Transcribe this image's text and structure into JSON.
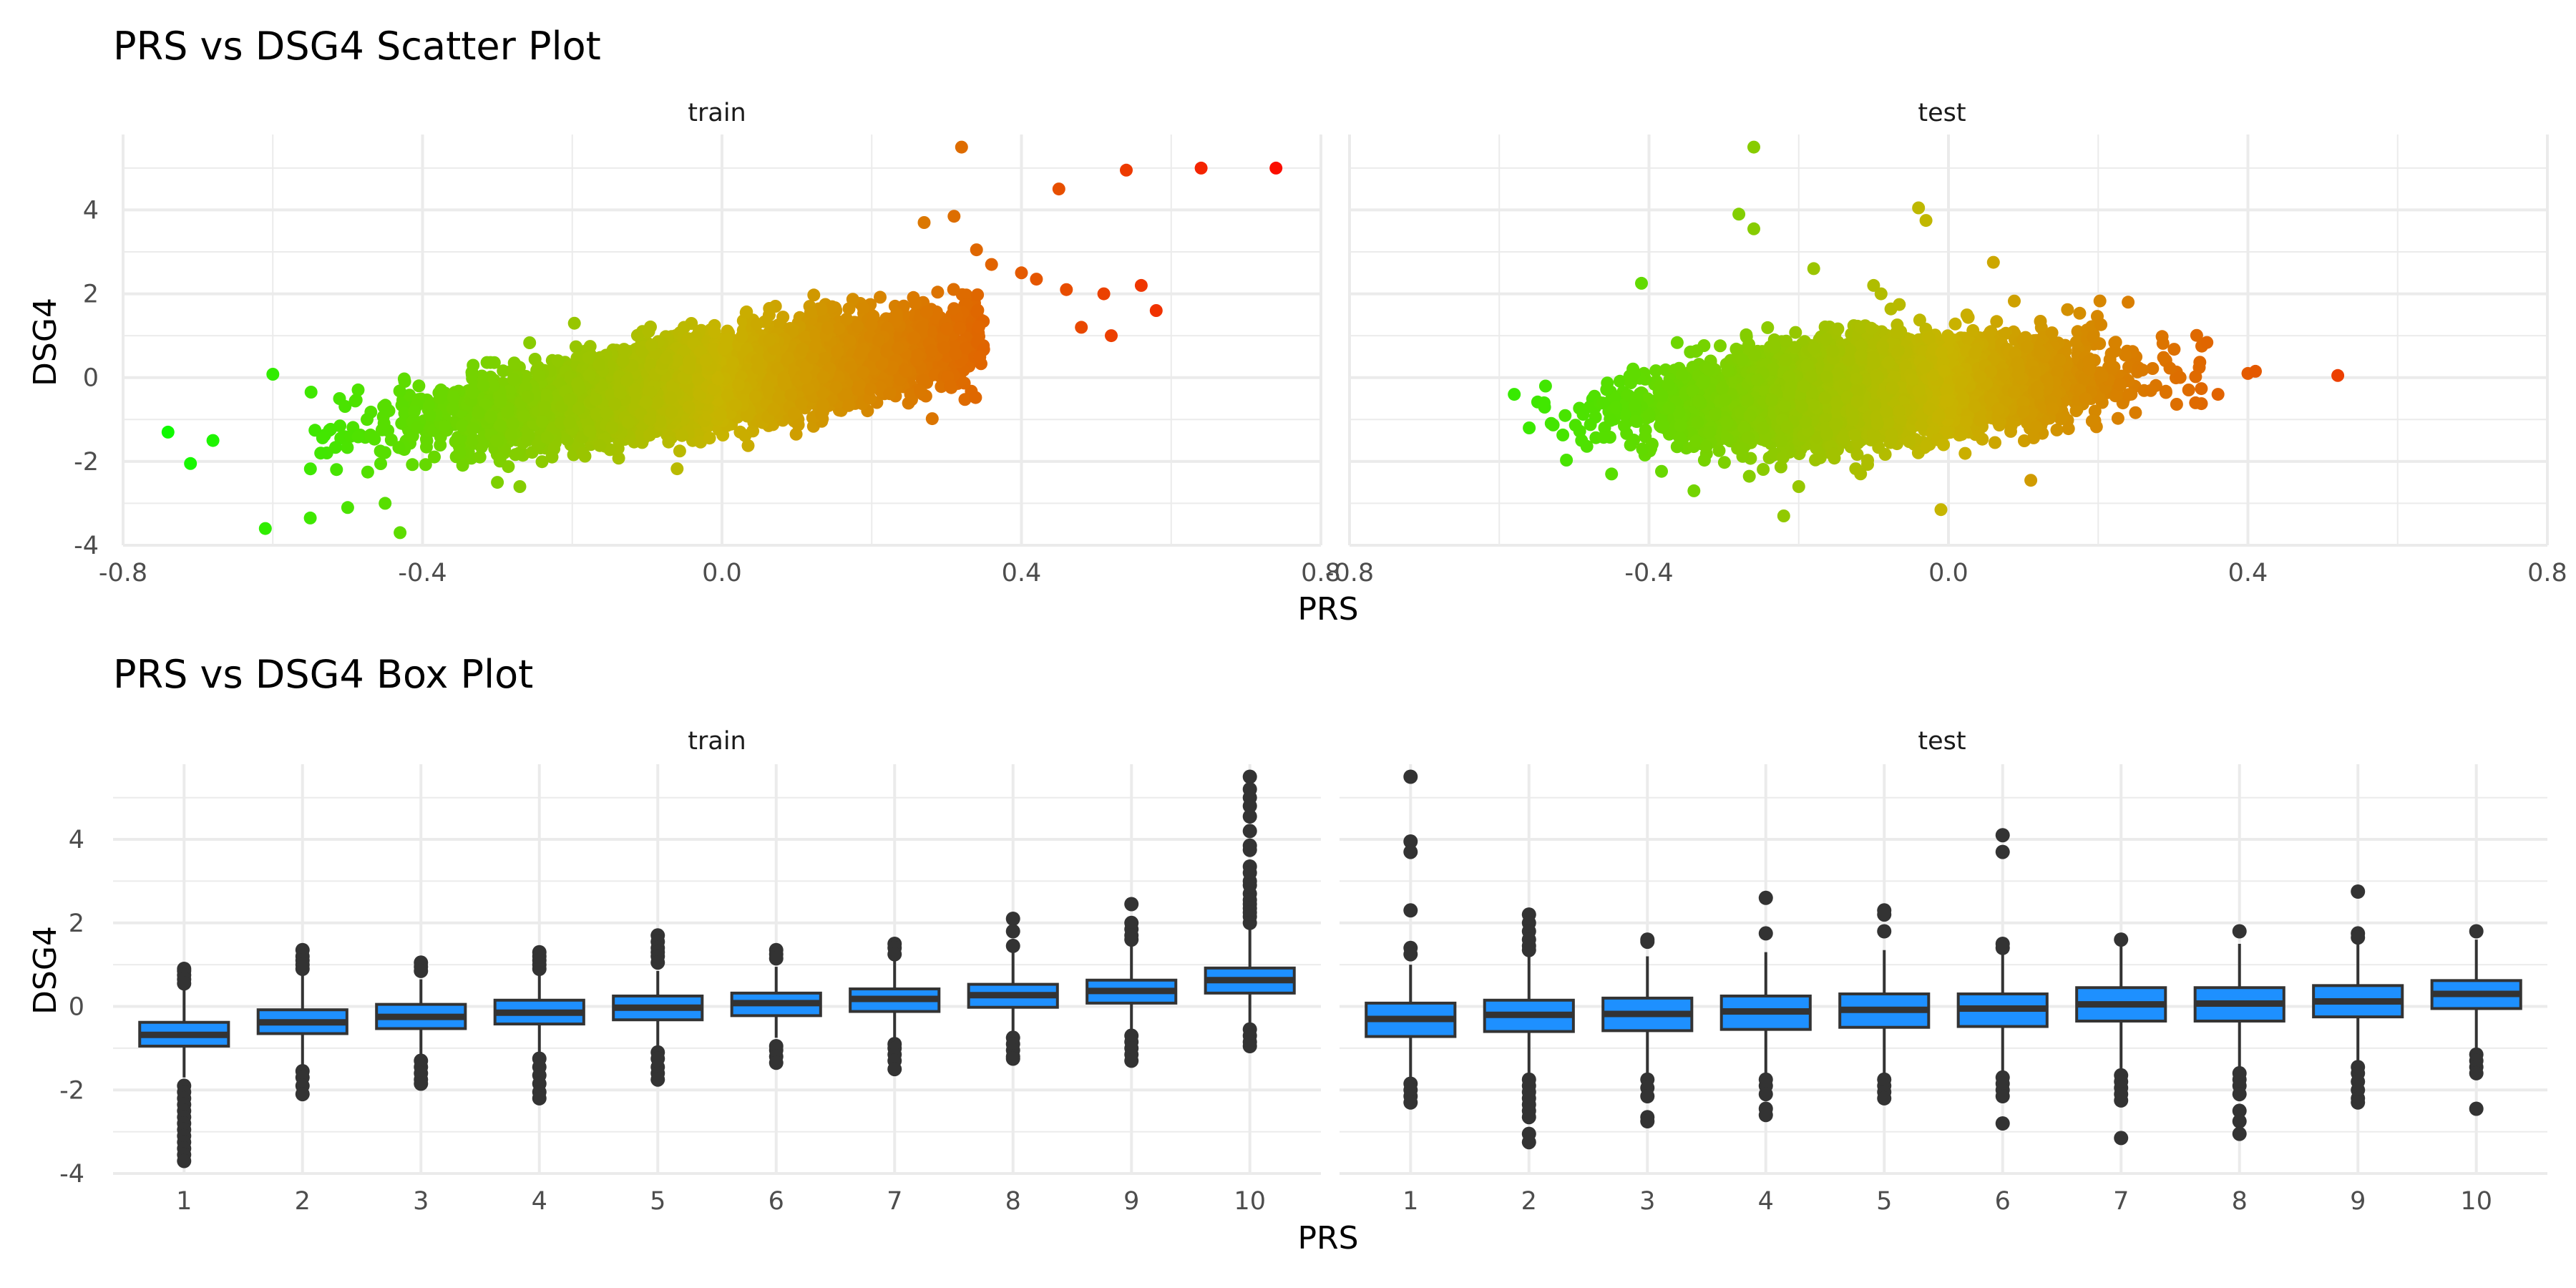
{
  "colors": {
    "low": "#00ff00",
    "mid": "#c8b400",
    "high": "#ff0000",
    "box_fill": "#1e90ff",
    "box_stroke": "#333333",
    "grid": "#ebebeb",
    "text": "#4d4d4d"
  },
  "chart_data": [
    {
      "type": "scatter",
      "title": "PRS vs DSG4 Scatter Plot",
      "xlabel": "PRS",
      "ylabel": "DSG4",
      "xlim": [
        -0.8,
        0.8
      ],
      "ylim": [
        -4,
        5.8
      ],
      "x_ticks": [
        -0.8,
        -0.4,
        0.0,
        0.4,
        0.8
      ],
      "x_tick_labels": [
        "-0.8",
        "-0.4",
        "0.0",
        "0.4",
        "0.8"
      ],
      "y_ticks": [
        -4,
        -2,
        0,
        2,
        4
      ],
      "y_tick_labels": [
        "-4",
        "-2",
        "0",
        "2",
        "4"
      ],
      "grid": true,
      "legend": "none",
      "color_by": "PRS",
      "color_scale": [
        "#00ff00",
        "#c8b400",
        "#ff0000"
      ],
      "facets": [
        {
          "label": "train",
          "cloud": {
            "n": 6000,
            "x_mean": 0.0,
            "x_sd": 0.17,
            "intercept": 0.0,
            "slope": 2.6,
            "noise_sd": 0.5
          },
          "points": [
            [
              -0.74,
              -1.3
            ],
            [
              -0.71,
              -2.05
            ],
            [
              -0.68,
              -1.5
            ],
            [
              -0.61,
              -3.6
            ],
            [
              -0.6,
              0.08
            ],
            [
              -0.55,
              -3.35
            ],
            [
              -0.5,
              -3.1
            ],
            [
              -0.45,
              -3.0
            ],
            [
              -0.43,
              -3.7
            ],
            [
              -0.3,
              -2.5
            ],
            [
              -0.27,
              -2.6
            ],
            [
              0.27,
              3.7
            ],
            [
              0.31,
              3.85
            ],
            [
              0.32,
              5.5
            ],
            [
              0.34,
              3.05
            ],
            [
              0.36,
              2.7
            ],
            [
              0.4,
              2.5
            ],
            [
              0.42,
              2.35
            ],
            [
              0.45,
              4.5
            ],
            [
              0.46,
              2.1
            ],
            [
              0.48,
              1.2
            ],
            [
              0.52,
              1.0
            ],
            [
              0.54,
              4.95
            ],
            [
              0.51,
              2.0
            ],
            [
              0.56,
              2.2
            ],
            [
              0.58,
              1.6
            ],
            [
              0.64,
              5.0
            ],
            [
              0.74,
              5.0
            ]
          ]
        },
        {
          "label": "test",
          "cloud": {
            "n": 5500,
            "x_mean": -0.1,
            "x_sd": 0.14,
            "intercept": -0.2,
            "slope": 1.3,
            "noise_sd": 0.55
          },
          "points": [
            [
              -0.58,
              -0.4
            ],
            [
              -0.56,
              -1.2
            ],
            [
              -0.54,
              -0.6
            ],
            [
              -0.49,
              -1.5
            ],
            [
              -0.45,
              -2.3
            ],
            [
              -0.41,
              2.25
            ],
            [
              -0.34,
              -2.7
            ],
            [
              -0.28,
              3.9
            ],
            [
              -0.26,
              5.5
            ],
            [
              -0.26,
              3.55
            ],
            [
              -0.22,
              -3.3
            ],
            [
              -0.2,
              -2.6
            ],
            [
              -0.18,
              2.6
            ],
            [
              -0.1,
              2.2
            ],
            [
              -0.09,
              2.0
            ],
            [
              -0.04,
              4.05
            ],
            [
              -0.03,
              3.75
            ],
            [
              -0.01,
              -3.15
            ],
            [
              0.06,
              2.75
            ],
            [
              0.11,
              -2.45
            ],
            [
              0.24,
              1.8
            ],
            [
              0.33,
              -0.6
            ],
            [
              0.36,
              -0.4
            ],
            [
              0.4,
              0.1
            ],
            [
              0.41,
              0.15
            ],
            [
              0.52,
              0.05
            ]
          ]
        }
      ]
    },
    {
      "type": "box",
      "title": "PRS vs DSG4 Box Plot",
      "xlabel": "PRS",
      "ylabel": "DSG4",
      "categories": [
        "1",
        "2",
        "3",
        "4",
        "5",
        "6",
        "7",
        "8",
        "9",
        "10"
      ],
      "ylim": [
        -4,
        5.8
      ],
      "y_ticks": [
        -4,
        -2,
        0,
        2,
        4
      ],
      "y_tick_labels": [
        "-4",
        "-2",
        "0",
        "2",
        "4"
      ],
      "grid": true,
      "legend": "none",
      "facets": [
        {
          "label": "train",
          "boxes": [
            {
              "q1": -0.95,
              "median": -0.68,
              "q3": -0.38,
              "lower": -1.7,
              "upper": 0.5,
              "outliers": [
                0.9,
                0.85,
                0.75,
                0.65,
                0.55,
                -1.9,
                -2.05,
                -2.2,
                -2.35,
                -2.5,
                -2.65,
                -2.8,
                -2.95,
                -3.1,
                -3.25,
                -3.4,
                -3.55,
                -3.7
              ]
            },
            {
              "q1": -0.65,
              "median": -0.38,
              "q3": -0.08,
              "lower": -1.4,
              "upper": 0.75,
              "outliers": [
                1.35,
                1.2,
                1.1,
                1.0,
                0.9,
                -1.55,
                -1.7,
                -1.9,
                -2.1
              ]
            },
            {
              "q1": -0.53,
              "median": -0.25,
              "q3": 0.05,
              "lower": -1.2,
              "upper": 0.65,
              "outliers": [
                1.05,
                0.95,
                0.85,
                -1.3,
                -1.45,
                -1.6,
                -1.75,
                -1.85
              ]
            },
            {
              "q1": -0.42,
              "median": -0.15,
              "q3": 0.15,
              "lower": -1.15,
              "upper": 0.75,
              "outliers": [
                1.3,
                1.2,
                1.1,
                1.0,
                0.9,
                -1.25,
                -1.45,
                -1.65,
                -1.85,
                -2.05,
                -2.2
              ]
            },
            {
              "q1": -0.32,
              "median": -0.03,
              "q3": 0.25,
              "lower": -0.95,
              "upper": 0.85,
              "outliers": [
                1.7,
                1.55,
                1.4,
                1.3,
                1.2,
                1.05,
                -1.1,
                -1.25,
                -1.45,
                -1.6,
                -1.75
              ]
            },
            {
              "q1": -0.22,
              "median": 0.08,
              "q3": 0.32,
              "lower": -0.75,
              "upper": 0.95,
              "outliers": [
                1.35,
                1.25,
                1.15,
                -0.95,
                -1.05,
                -1.2,
                -1.35
              ]
            },
            {
              "q1": -0.12,
              "median": 0.18,
              "q3": 0.42,
              "lower": -0.75,
              "upper": 1.1,
              "outliers": [
                1.5,
                1.4,
                1.25,
                -0.9,
                -1.0,
                -1.15,
                -1.3,
                -1.5
              ]
            },
            {
              "q1": -0.02,
              "median": 0.27,
              "q3": 0.53,
              "lower": -0.65,
              "upper": 1.3,
              "outliers": [
                2.1,
                1.8,
                1.45,
                -0.75,
                -0.9,
                -1.05,
                -1.2,
                -1.25
              ]
            },
            {
              "q1": 0.08,
              "median": 0.37,
              "q3": 0.63,
              "lower": -0.6,
              "upper": 1.45,
              "outliers": [
                2.45,
                2.0,
                1.85,
                1.7,
                1.6,
                -0.7,
                -0.85,
                -1.0,
                -1.15,
                -1.3
              ]
            },
            {
              "q1": 0.32,
              "median": 0.63,
              "q3": 0.92,
              "lower": -0.45,
              "upper": 1.85,
              "outliers": [
                5.5,
                5.2,
                5.0,
                4.8,
                4.55,
                4.2,
                3.85,
                3.75,
                3.35,
                3.2,
                3.0,
                2.9,
                2.7,
                2.55,
                2.45,
                2.35,
                2.25,
                2.15,
                2.0,
                -0.55,
                -0.7,
                -0.85,
                -0.95
              ]
            }
          ]
        },
        {
          "label": "test",
          "boxes": [
            {
              "q1": -0.72,
              "median": -0.3,
              "q3": 0.08,
              "lower": -1.75,
              "upper": 1.0,
              "outliers": [
                5.5,
                3.95,
                3.7,
                2.3,
                1.4,
                1.25,
                -1.85,
                -2.0,
                -2.15,
                -2.3
              ]
            },
            {
              "q1": -0.6,
              "median": -0.2,
              "q3": 0.15,
              "lower": -1.65,
              "upper": 1.2,
              "outliers": [
                2.2,
                2.0,
                1.8,
                1.6,
                1.45,
                1.35,
                -1.75,
                -1.9,
                -2.05,
                -2.2,
                -2.35,
                -2.5,
                -2.65,
                -3.05,
                -3.25
              ]
            },
            {
              "q1": -0.58,
              "median": -0.18,
              "q3": 0.2,
              "lower": -1.6,
              "upper": 1.2,
              "outliers": [
                1.6,
                1.55,
                -1.75,
                -1.95,
                -2.15,
                -2.65,
                -2.75
              ]
            },
            {
              "q1": -0.55,
              "median": -0.12,
              "q3": 0.25,
              "lower": -1.6,
              "upper": 1.3,
              "outliers": [
                2.6,
                1.75,
                -1.75,
                -1.9,
                -2.1,
                -2.45,
                -2.6
              ]
            },
            {
              "q1": -0.5,
              "median": -0.08,
              "q3": 0.3,
              "lower": -1.6,
              "upper": 1.35,
              "outliers": [
                2.3,
                2.2,
                1.8,
                -1.75,
                -1.9,
                -2.05,
                -2.2
              ]
            },
            {
              "q1": -0.48,
              "median": -0.05,
              "q3": 0.3,
              "lower": -1.6,
              "upper": 1.35,
              "outliers": [
                4.1,
                3.7,
                1.5,
                1.4,
                -1.7,
                -1.85,
                -2.0,
                -2.15,
                -2.8
              ]
            },
            {
              "q1": -0.35,
              "median": 0.05,
              "q3": 0.45,
              "lower": -1.55,
              "upper": 1.5,
              "outliers": [
                1.6,
                -1.65,
                -1.8,
                -1.95,
                -2.1,
                -2.25,
                -3.15
              ]
            },
            {
              "q1": -0.35,
              "median": 0.07,
              "q3": 0.45,
              "lower": -1.5,
              "upper": 1.5,
              "outliers": [
                1.8,
                -1.6,
                -1.75,
                -1.9,
                -2.1,
                -2.5,
                -2.75,
                -3.05
              ]
            },
            {
              "q1": -0.25,
              "median": 0.12,
              "q3": 0.5,
              "lower": -1.4,
              "upper": 1.55,
              "outliers": [
                2.75,
                1.75,
                1.65,
                -1.45,
                -1.6,
                -1.8,
                -2.0,
                -2.2,
                -2.3
              ]
            },
            {
              "q1": -0.05,
              "median": 0.3,
              "q3": 0.62,
              "lower": -1.0,
              "upper": 1.6,
              "outliers": [
                1.8,
                -1.15,
                -1.3,
                -1.45,
                -1.6,
                -2.45
              ]
            }
          ]
        }
      ]
    }
  ]
}
